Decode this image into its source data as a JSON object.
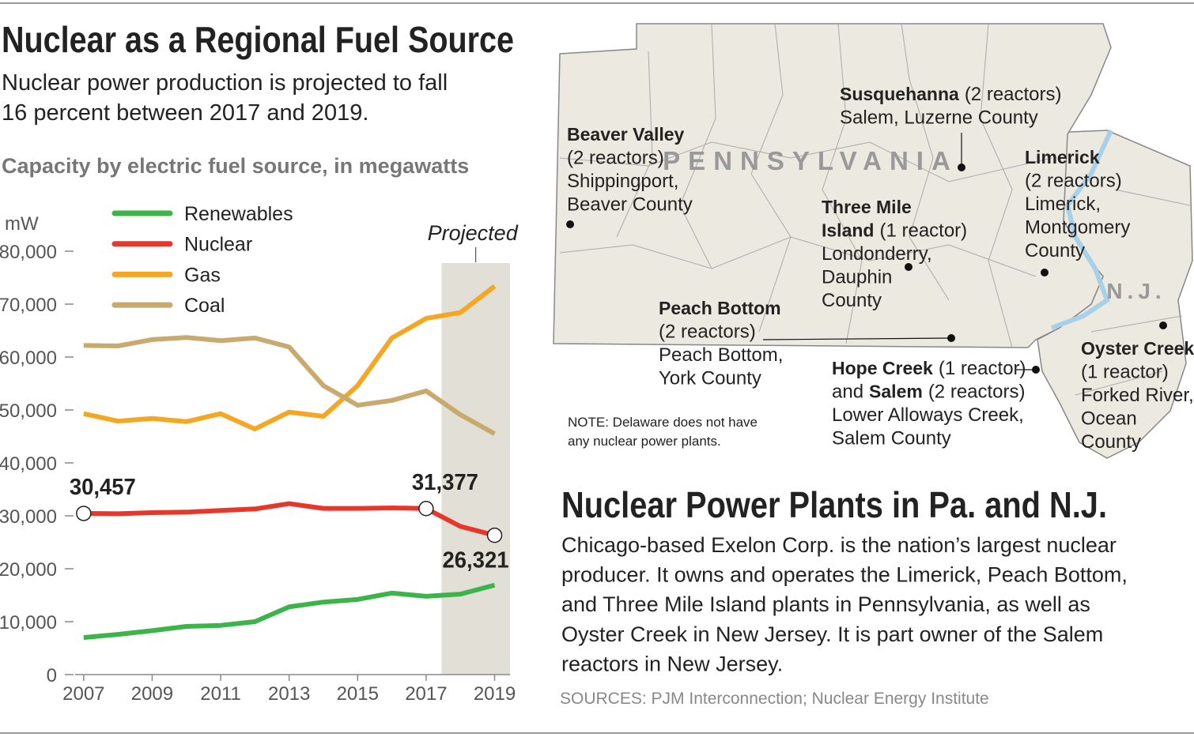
{
  "header": {
    "title": "Nuclear as a Regional Fuel Source",
    "subtitle_lines": [
      "Nuclear power production is projected to fall",
      "16 percent between 2017 and 2019."
    ]
  },
  "chart_data": {
    "type": "line",
    "title": "Capacity by electric fuel source, in megawatts",
    "y_label": "mW",
    "x": [
      2007,
      2008,
      2009,
      2010,
      2011,
      2012,
      2013,
      2014,
      2015,
      2016,
      2017,
      2018,
      2019
    ],
    "xlim": [
      2006.75,
      2019.45
    ],
    "xticks": [
      2007,
      2009,
      2011,
      2013,
      2015,
      2017,
      2019
    ],
    "ylim": [
      0,
      80000
    ],
    "yticks": [
      0,
      {
        "value": 10000,
        "label": "10,000"
      },
      {
        "value": 20000,
        "label": "20,000"
      },
      {
        "value": 30000,
        "label": "30,000"
      },
      {
        "value": 40000,
        "label": "40,000"
      },
      {
        "value": 50000,
        "label": "50,000"
      },
      {
        "value": 60000,
        "label": "60,000"
      },
      {
        "value": 70000,
        "label": "70,000"
      },
      {
        "value": 80000,
        "label": "80,000"
      }
    ],
    "shaded_range": {
      "label": "Projected",
      "from": 2017.45,
      "to": 2019.45,
      "color": "#e2e0d6"
    },
    "series": [
      {
        "name": "Renewables",
        "color": "#3cb44a",
        "values": [
          7000,
          7600,
          8300,
          9100,
          9300,
          10000,
          12800,
          13700,
          14200,
          15400,
          14800,
          15200,
          16900
        ]
      },
      {
        "name": "Nuclear",
        "color": "#e8372a",
        "values": [
          30457,
          30400,
          30600,
          30700,
          31000,
          31300,
          32300,
          31400,
          31400,
          31500,
          31377,
          28000,
          26321
        ],
        "value_labels": [
          "30,457",
          null,
          null,
          null,
          null,
          null,
          null,
          null,
          null,
          null,
          "31,377",
          null,
          "26,321"
        ]
      },
      {
        "name": "Gas",
        "color": "#f5a623",
        "values": [
          49300,
          47900,
          48400,
          47800,
          49300,
          46400,
          49600,
          48800,
          54600,
          63600,
          67300,
          68400,
          73400
        ]
      },
      {
        "name": "Coal",
        "color": "#c8a96e",
        "values": [
          62200,
          62100,
          63300,
          63700,
          63100,
          63600,
          61900,
          54600,
          50900,
          51800,
          53600,
          49100,
          45500
        ]
      }
    ]
  },
  "map": {
    "state_labels": [
      "PENNSYLVANIA",
      "N.J."
    ],
    "plants": [
      {
        "lines": [
          [
            {
              "text": "Beaver Valley",
              "bold": true
            }
          ],
          [
            {
              "text": "(2 reactors)"
            }
          ],
          [
            {
              "text": "Shippingport,"
            }
          ],
          [
            {
              "text": "Beaver County"
            }
          ]
        ]
      },
      {
        "lines": [
          [
            {
              "text": "Susquehanna",
              "bold": true
            },
            {
              "text": "(2 reactors)"
            }
          ],
          [
            {
              "text": "Salem, Luzerne County"
            }
          ]
        ]
      },
      {
        "lines": [
          [
            {
              "text": "Limerick",
              "bold": true
            }
          ],
          [
            {
              "text": "(2 reactors)"
            }
          ],
          [
            {
              "text": "Limerick,"
            }
          ],
          [
            {
              "text": "Montgomery"
            }
          ],
          [
            {
              "text": "County"
            }
          ]
        ]
      },
      {
        "lines": [
          [
            {
              "text": "Three Mile",
              "bold": true
            }
          ],
          [
            {
              "text": "Island",
              "bold": true
            },
            {
              "text": "(1 reactor)"
            }
          ],
          [
            {
              "text": "Londonderry,"
            }
          ],
          [
            {
              "text": "Dauphin"
            }
          ],
          [
            {
              "text": "County"
            }
          ]
        ]
      },
      {
        "lines": [
          [
            {
              "text": "Peach Bottom",
              "bold": true
            }
          ],
          [
            {
              "text": "(2 reactors)"
            }
          ],
          [
            {
              "text": "Peach Bottom,"
            }
          ],
          [
            {
              "text": "York County"
            }
          ]
        ]
      },
      {
        "lines": [
          [
            {
              "text": "Hope Creek",
              "bold": true
            },
            {
              "text": "(1 reactor)"
            }
          ],
          [
            {
              "text": "and"
            },
            {
              "text": "Salem",
              "bold": true
            },
            {
              "text": "(2 reactors)"
            }
          ],
          [
            {
              "text": "Lower Alloways Creek,"
            }
          ],
          [
            {
              "text": "Salem County"
            }
          ]
        ]
      },
      {
        "lines": [
          [
            {
              "text": "Oyster Creek",
              "bold": true
            }
          ],
          [
            {
              "text": "(1 reactor)"
            }
          ],
          [
            {
              "text": "Forked River,"
            }
          ],
          [
            {
              "text": "Ocean"
            }
          ],
          [
            {
              "text": "County"
            }
          ]
        ]
      }
    ],
    "note_lines": [
      "NOTE: Delaware does not have",
      "any nuclear power plants."
    ]
  },
  "story": {
    "title": "Nuclear Power Plants in Pa. and N.J.",
    "lines": [
      "Chicago-based Exelon Corp. is the nation’s largest nuclear",
      "producer. It owns and operates the Limerick, Peach Bottom,",
      "and Three Mile Island plants in Pennsylvania, as well as",
      "Oyster Creek in New Jersey. It is part owner of the Salem",
      "reactors in New Jersey."
    ],
    "sources": "SOURCES: PJM Interconnection; Nuclear Energy Institute"
  }
}
